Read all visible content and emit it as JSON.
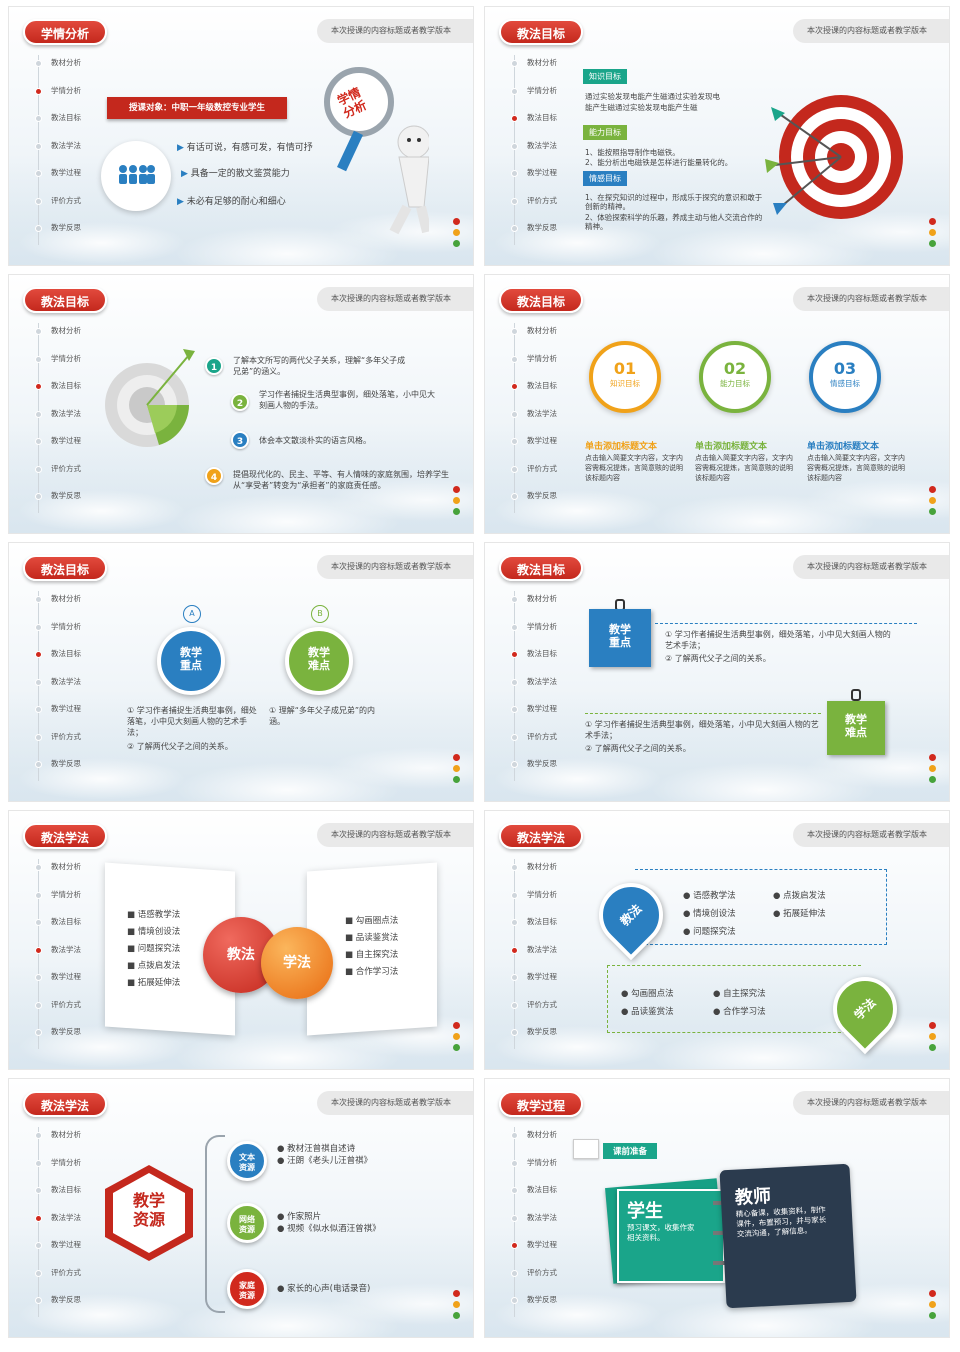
{
  "common": {
    "subtitle": "本次授课的内容标题或者教学版本",
    "nav": [
      "教材分析",
      "学情分析",
      "教法目标",
      "教法学法",
      "教学过程",
      "评价方式",
      "教学反思"
    ]
  },
  "s1": {
    "title": "学情分析",
    "target_label": "授课对象：中职一年级数控专业学生",
    "bullets": [
      "有话可说，有感可发，有情可抒",
      "具备一定的散文鉴赏能力",
      "未必有足够的耐心和细心"
    ],
    "magnifier_text": "学情\n分析"
  },
  "s2": {
    "title": "教法目标",
    "tag1": "知识目标",
    "tag1_text": "通过实验发现电能产生磁通过实验发现电能产生磁通过实验发现电能产生磁",
    "tag2": "能力目标",
    "tag2_text1": "1、能按照指导制作电磁铁。",
    "tag2_text2": "2、能分析出电磁铁是怎样进行能量转化的。",
    "tag3": "情感目标",
    "tag3_text1": "1、在探究知识的过程中，形成乐于探究的意识和敢于创新的精神。",
    "tag3_text2": "2、体验探索科学的乐趣，养成主动与他人交流合作的精神。"
  },
  "s3": {
    "title": "教法目标",
    "items": [
      "了解本文所写的两代父子关系，理解“多年父子成兄弟”的涵义。",
      "学习作者捕捉生活典型事例，细处落笔，小中见大刻画人物的手法。",
      "体会本文散淡朴实的语言风格。",
      "提倡现代化的、民主、平等、有人情味的家庭氛围，培养学生从“享受者”转变为“承担者”的家庭责任感。"
    ],
    "nums": [
      "1",
      "2",
      "3",
      "4"
    ]
  },
  "s4": {
    "title": "教法目标",
    "circles": [
      {
        "num": "01",
        "label": "知识目标",
        "color": "#f0a21a"
      },
      {
        "num": "02",
        "label": "能力目标",
        "color": "#7ab33e"
      },
      {
        "num": "03",
        "label": "情感目标",
        "color": "#2a7fc1"
      }
    ],
    "heading": "单击添加标题文本",
    "body": "点击输入简要文字内容，文字内容需概况提炼，言简意赅的说明该标题内容"
  },
  "s5": {
    "title": "教法目标",
    "a_letter": "A",
    "b_letter": "B",
    "a_label": "教学\n重点",
    "b_label": "教学\n难点",
    "a_text1": "① 学习作者捕捉生活典型事例，细处落笔，小中见大刻画人物的艺术手法；",
    "a_text2": "② 了解两代父子之间的关系。",
    "b_text1": "① 理解“多年父子成兄弟”的内涵。"
  },
  "s6": {
    "title": "教法目标",
    "card1": "教学\n重点",
    "card2": "教学\n难点",
    "t1a": "① 学习作者捕捉生活典型事例，细处落笔，小中见大刻画人物的艺术手法；",
    "t1b": "② 了解两代父子之间的关系。",
    "t2a": "① 学习作者捕捉生活典型事例，细处落笔，小中见大刻画人物的艺术手法；",
    "t2b": "② 了解两代父子之间的关系。"
  },
  "s7": {
    "title": "教法学法",
    "left": [
      "语感教学法",
      "情境创设法",
      "问题探究法",
      "点拨启发法",
      "拓展延伸法"
    ],
    "right": [
      "勾画圈点法",
      "品读鉴赏法",
      "自主探究法",
      "合作学习法"
    ],
    "ball1": "教法",
    "ball2": "学法"
  },
  "s8": {
    "title": "教法学法",
    "pin1": "教法",
    "pin2": "学法",
    "top_col1": [
      "语感教学法",
      "情境创设法",
      "问题探究法"
    ],
    "top_col2": [
      "点拨启发法",
      "拓展延伸法"
    ],
    "bot_col1": [
      "勾画圈点法",
      "品读鉴赏法"
    ],
    "bot_col2": [
      "自主探究法",
      "合作学习法"
    ]
  },
  "s9": {
    "title": "教法学法",
    "hex": "教学\n资源",
    "groups": [
      {
        "label": "文本\n资源",
        "color": "#2a7fc1",
        "items": [
          "教材汪曾祺自述诗",
          "汪朗《老头儿汪曾祺》"
        ]
      },
      {
        "label": "网络\n资源",
        "color": "#7ab33e",
        "items": [
          "作家照片",
          "视频《似水似酒汪曾祺》"
        ]
      },
      {
        "label": "家庭\n资源",
        "color": "#d1291d",
        "items": [
          "家长的心声(电话录音)"
        ]
      }
    ]
  },
  "s10": {
    "title": "教学过程",
    "tag": "课前准备",
    "student_title": "学生",
    "student_text": "预习课文，收集作家相关资料。",
    "teacher_title": "教师",
    "teacher_text": "精心备课，收集资料，制作课件，布置预习，并与家长交流沟通，了解信息。"
  }
}
